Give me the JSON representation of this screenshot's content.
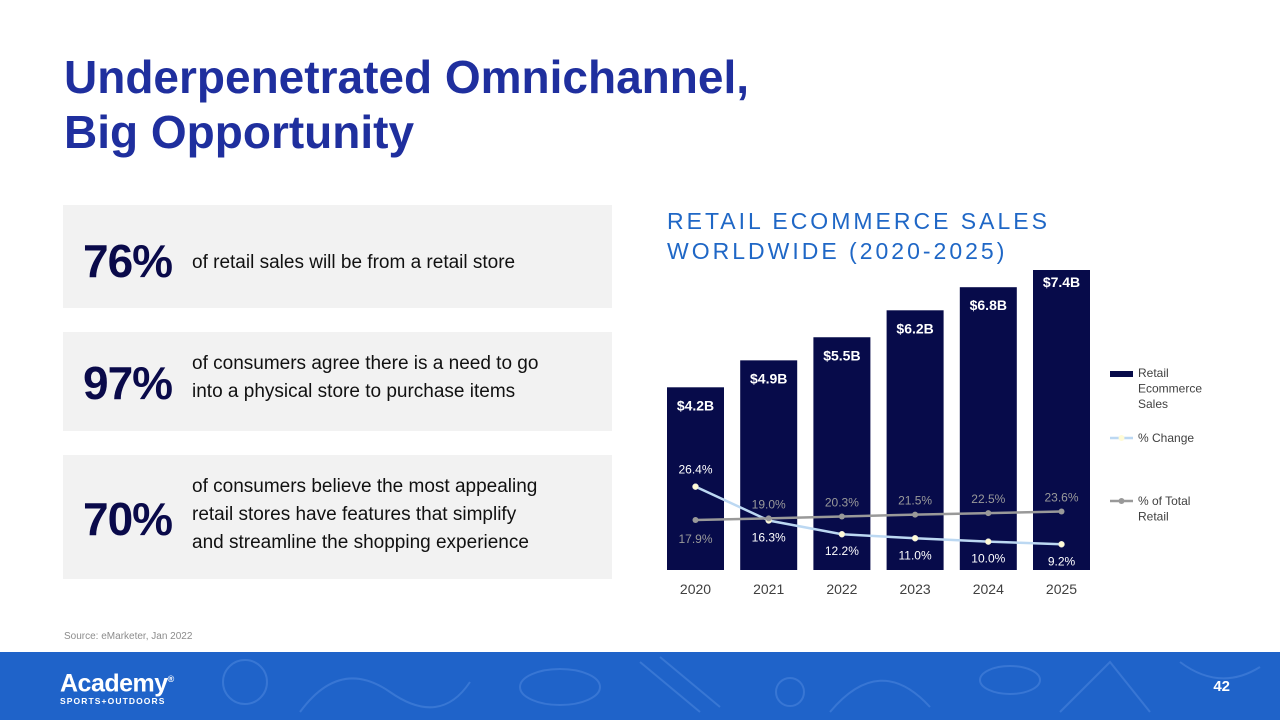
{
  "slide": {
    "title_line1": "Underpenetrated Omnichannel,",
    "title_line2": "Big Opportunity",
    "source": "Source: eMarketer, Jan 2022",
    "page_number": "42"
  },
  "stats": [
    {
      "value": "76%",
      "text_lines": [
        "of retail sales will be from a retail store"
      ]
    },
    {
      "value": "97%",
      "text_lines": [
        "of consumers agree there is a need to go",
        "into a physical store to purchase items"
      ]
    },
    {
      "value": "70%",
      "text_lines": [
        "of consumers believe the most appealing",
        "retail stores have features that simplify",
        "and streamline the shopping experience"
      ]
    }
  ],
  "footer": {
    "brand_main": "Academy",
    "brand_sub": "SPORTS+OUTDOORS",
    "brand_mark": "®"
  },
  "colors": {
    "title": "#1f2f9e",
    "bar": "#070b4a",
    "pct_change_line": "#bcd8f2",
    "pct_total_line": "#999999",
    "chart_title": "#1f67c6",
    "footer_bg": "#1f63c9"
  },
  "chart_data": {
    "type": "bar",
    "title_line1": "RETAIL ECOMMERCE SALES",
    "title_line2": "WORLDWIDE (2020-2025)",
    "categories": [
      "2020",
      "2021",
      "2022",
      "2023",
      "2024",
      "2025"
    ],
    "series": [
      {
        "name": "Retail Ecommerce Sales",
        "type": "bar",
        "values": [
          4.2,
          4.9,
          5.5,
          6.2,
          6.8,
          7.4
        ],
        "labels": [
          "$4.2B",
          "$4.9B",
          "$5.5B",
          "$6.2B",
          "$6.8B",
          "$7.4B"
        ]
      },
      {
        "name": "% Change",
        "type": "line",
        "values": [
          26.4,
          16.3,
          12.2,
          11.0,
          10.0,
          9.2
        ],
        "labels": [
          "26.4%",
          "16.3%",
          "12.2%",
          "11.0%",
          "10.0%",
          "9.2%"
        ]
      },
      {
        "name": "% of Total Retail",
        "type": "line",
        "values": [
          17.9,
          19.0,
          20.3,
          21.5,
          22.5,
          23.6
        ],
        "labels": [
          "17.9%",
          "19.0%",
          "20.3%",
          "21.5%",
          "22.5%",
          "23.6%"
        ]
      }
    ],
    "legend_lines": [
      [
        "Retail",
        "Ecommerce",
        "Sales"
      ],
      [
        "% Change"
      ],
      [
        "% of Total",
        "Retail"
      ]
    ],
    "legend_position": "right",
    "grid": false
  }
}
